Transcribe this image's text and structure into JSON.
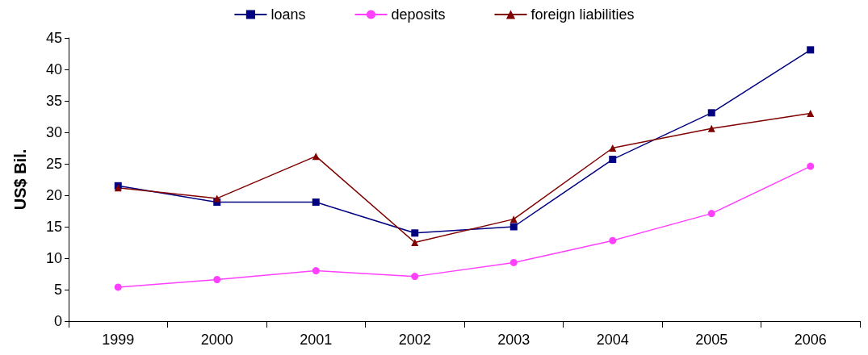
{
  "chart_data": {
    "type": "line",
    "ylabel": "US$ Bil.",
    "categories": [
      "1999",
      "2000",
      "2001",
      "2002",
      "2003",
      "2004",
      "2005",
      "2006"
    ],
    "series": [
      {
        "name": "loans",
        "color": "#000080",
        "marker": "square",
        "values": [
          21.5,
          18.9,
          18.9,
          14,
          15,
          25.7,
          33.1,
          43.1
        ]
      },
      {
        "name": "deposits",
        "color": "#ff40ff",
        "marker": "circle",
        "values": [
          5.4,
          6.6,
          8,
          7.1,
          9.3,
          12.8,
          17.1,
          24.6
        ]
      },
      {
        "name": "foreign liabilities",
        "color": "#800000",
        "marker": "triangle",
        "values": [
          21.2,
          19.5,
          26.2,
          12.5,
          16.2,
          27.5,
          30.6,
          33
        ]
      }
    ],
    "ylim": [
      0,
      45
    ],
    "yticks": [
      0,
      5,
      10,
      15,
      20,
      25,
      30,
      35,
      40,
      45
    ],
    "grid": false,
    "legend": "top",
    "line_style": "solid"
  }
}
